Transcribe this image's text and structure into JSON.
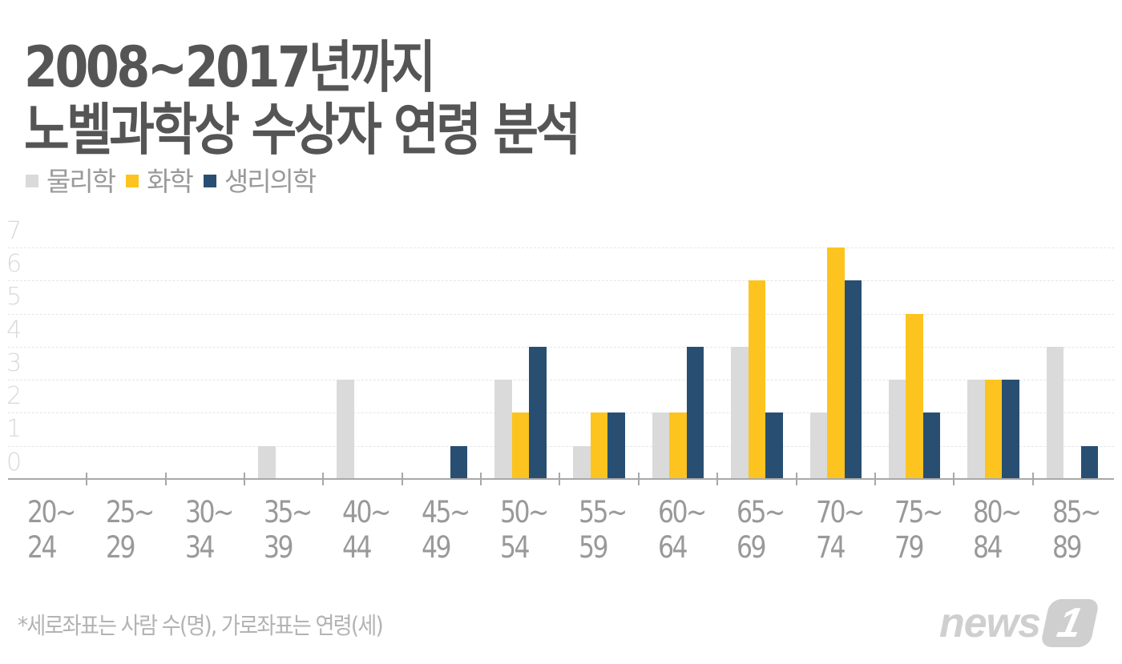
{
  "title": {
    "line1": "2008~2017년까지",
    "line2": "노벨과학상 수상자 연령 분석"
  },
  "legend": [
    {
      "label": "물리학",
      "color": "#dadada"
    },
    {
      "label": "화학",
      "color": "#fdc41f"
    },
    {
      "label": "생리의학",
      "color": "#284f72"
    }
  ],
  "footnote": "*세로좌표는 사람 수(명), 가로좌표는 연령(세)",
  "logo": {
    "word": "news",
    "badge": "1"
  },
  "chart_data": {
    "type": "bar",
    "title": "2008~2017년까지 노벨과학상 수상자 연령 분석",
    "xlabel": "연령(세)",
    "ylabel": "사람 수(명)",
    "ylim": [
      0,
      7
    ],
    "yticks": [
      "0",
      "1",
      "2",
      "3",
      "4",
      "5",
      "6",
      "7"
    ],
    "grid": true,
    "legend_position": "top-left",
    "categories": [
      "20~24",
      "25~29",
      "30~34",
      "35~39",
      "40~44",
      "45~49",
      "50~54",
      "55~59",
      "60~64",
      "65~69",
      "70~74",
      "75~79",
      "80~84",
      "85~89"
    ],
    "category_labels": [
      [
        "20~",
        "24"
      ],
      [
        "25~",
        "29"
      ],
      [
        "30~",
        "34"
      ],
      [
        "35~",
        "39"
      ],
      [
        "40~",
        "44"
      ],
      [
        "45~",
        "49"
      ],
      [
        "50~",
        "54"
      ],
      [
        "55~",
        "59"
      ],
      [
        "60~",
        "64"
      ],
      [
        "65~",
        "69"
      ],
      [
        "70~",
        "74"
      ],
      [
        "75~",
        "79"
      ],
      [
        "80~",
        "84"
      ],
      [
        "85~",
        "89"
      ]
    ],
    "series": [
      {
        "name": "물리학",
        "color": "#dadada",
        "values": [
          0,
          0,
          0,
          1,
          3,
          0,
          3,
          1,
          2,
          4,
          2,
          3,
          3,
          4
        ]
      },
      {
        "name": "화학",
        "color": "#fdc41f",
        "values": [
          0,
          0,
          0,
          0,
          0,
          0,
          2,
          2,
          2,
          6,
          7,
          5,
          3,
          0
        ]
      },
      {
        "name": "생리의학",
        "color": "#284f72",
        "values": [
          0,
          0,
          0,
          0,
          0,
          1,
          4,
          2,
          4,
          2,
          6,
          2,
          3,
          1
        ]
      }
    ],
    "footnote": "*세로좌표는 사람 수(명), 가로좌표는 연령(세)"
  }
}
